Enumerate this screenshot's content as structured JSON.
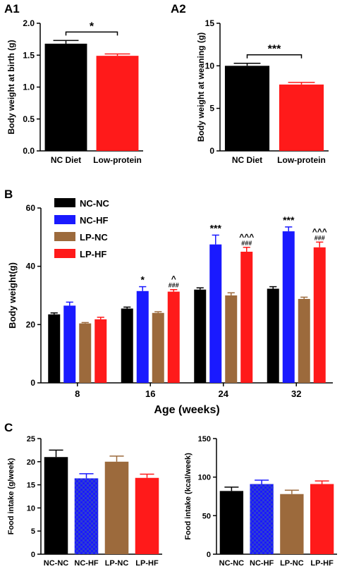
{
  "colors": {
    "black": "#000000",
    "blue": "#1a1aff",
    "brown": "#9c6a3c",
    "red": "#ff1a1a",
    "dark_red": "#c00000"
  },
  "chart_data": [
    {
      "panel": "A1",
      "type": "bar",
      "categories": [
        "NC Diet",
        "Low-protein"
      ],
      "values": [
        1.68,
        1.49
      ],
      "errors": [
        0.05,
        0.03
      ],
      "colors": [
        "#000000",
        "#ff1a1a"
      ],
      "ylabel": "Body weight at birth (g)",
      "ylim": [
        0,
        2.0
      ],
      "yticks": [
        "0.0",
        "0.5",
        "1.0",
        "1.5",
        "2.0"
      ],
      "significance": "*"
    },
    {
      "panel": "A2",
      "type": "bar",
      "categories": [
        "NC Diet",
        "Low-protein"
      ],
      "values": [
        10.0,
        7.8
      ],
      "errors": [
        0.3,
        0.25
      ],
      "colors": [
        "#000000",
        "#ff1a1a"
      ],
      "ylabel": "Body weight at weaning (g)",
      "ylim": [
        0,
        15
      ],
      "yticks": [
        "0",
        "5",
        "10",
        "15"
      ],
      "significance": "***"
    },
    {
      "panel": "B",
      "type": "bar",
      "categories": [
        "8",
        "16",
        "24",
        "32"
      ],
      "series": [
        {
          "name": "NC-NC",
          "color": "#000000",
          "values": [
            23.5,
            25.5,
            32.0,
            32.3
          ],
          "errors": [
            0.5,
            0.5,
            0.6,
            0.7
          ]
        },
        {
          "name": "NC-HF",
          "color": "#1a1aff",
          "values": [
            26.5,
            31.5,
            47.5,
            52.0
          ],
          "errors": [
            1.2,
            1.5,
            3.2,
            1.5
          ]
        },
        {
          "name": "LP-NC",
          "color": "#9c6a3c",
          "values": [
            20.4,
            24.0,
            30.0,
            28.8
          ],
          "errors": [
            0.3,
            0.4,
            0.9,
            0.6
          ]
        },
        {
          "name": "LP-HF",
          "color": "#ff1a1a",
          "values": [
            21.8,
            31.3,
            45.0,
            46.5
          ],
          "errors": [
            0.7,
            0.7,
            1.5,
            1.8
          ]
        }
      ],
      "annotations": [
        {
          "category": "16",
          "series": "NC-HF",
          "text": "*"
        },
        {
          "category": "16",
          "series": "LP-HF",
          "text": "^",
          "sub": "###"
        },
        {
          "category": "24",
          "series": "NC-HF",
          "text": "***"
        },
        {
          "category": "24",
          "series": "LP-HF",
          "text": "^^^",
          "sub": "###"
        },
        {
          "category": "32",
          "series": "NC-HF",
          "text": "***"
        },
        {
          "category": "32",
          "series": "LP-HF",
          "text": "^^^",
          "sub": "###"
        }
      ],
      "xlabel": "Age (weeks)",
      "ylabel": "Body weight(g)",
      "ylim": [
        0,
        60
      ],
      "yticks": [
        "0",
        "20",
        "40",
        "60"
      ],
      "legend": "top-left"
    },
    {
      "panel": "C-left",
      "type": "bar",
      "categories": [
        "NC-NC",
        "NC-HF",
        "LP-NC",
        "LP-HF"
      ],
      "values": [
        21.0,
        16.4,
        20.0,
        16.5
      ],
      "errors": [
        1.5,
        1.0,
        1.2,
        0.8
      ],
      "colors": [
        "#000000",
        "#1a1aff",
        "#9c6a3c",
        "#ff1a1a"
      ],
      "ylabel": "Food intake (g/week)",
      "ylim": [
        0,
        25
      ],
      "yticks": [
        "0",
        "5",
        "10",
        "15",
        "20",
        "25"
      ]
    },
    {
      "panel": "C-right",
      "type": "bar",
      "categories": [
        "NC-NC",
        "NC-HF",
        "LP-NC",
        "LP-HF"
      ],
      "values": [
        82,
        91,
        78,
        91
      ],
      "errors": [
        5,
        5,
        5,
        4
      ],
      "colors": [
        "#000000",
        "#1a1aff",
        "#9c6a3c",
        "#ff1a1a"
      ],
      "ylabel": "Food intake (kcal/week)",
      "ylim": [
        0,
        150
      ],
      "yticks": [
        "0",
        "50",
        "100",
        "150"
      ]
    }
  ]
}
